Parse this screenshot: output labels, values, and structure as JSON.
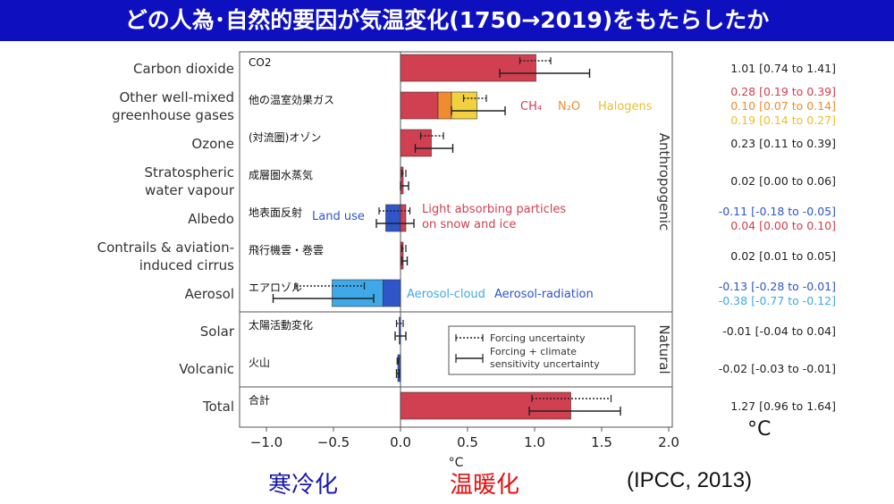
{
  "title": "どの人為･自然的要因が気温変化(1750→2019)をもたらしたか",
  "captions": {
    "cooling": "寒冷化",
    "warming": "温暖化",
    "source": "(IPCC, 2013)"
  },
  "colors": {
    "warming": "#d04050",
    "n2o": "#f08c30",
    "halogens": "#f2d040",
    "cooling": "#2f55c8",
    "aerosol_cloud": "#3fa8e8",
    "title_bg": "#0e0fbf"
  },
  "chart_data": {
    "type": "bar",
    "orientation": "horizontal",
    "xlabel": "°C",
    "xlim": [
      -1.2,
      2.0
    ],
    "xticks": [
      -1.0,
      -0.5,
      0.0,
      0.5,
      1.0,
      1.5,
      2.0
    ],
    "xtick_labels": [
      "−1.0",
      "−0.5",
      "0.0",
      "0.5",
      "1.0",
      "1.5",
      "2.0"
    ],
    "value_unit": "°C",
    "group_labels": {
      "anthropogenic": "Anthropogenic",
      "natural": "Natural"
    },
    "categories": [
      {
        "label": [
          "Carbon dioxide"
        ],
        "jp": "CO2",
        "segments": [
          {
            "from": 0,
            "to": 1.01,
            "color": "#d04050"
          }
        ],
        "forcing": [
          0.89,
          1.12
        ],
        "sensitivity": [
          0.74,
          1.41
        ],
        "values": [
          {
            "text": "1.01 [0.74 to 1.41]",
            "color": "#222222"
          }
        ]
      },
      {
        "label": [
          "Other well-mixed",
          "greenhouse gases"
        ],
        "jp": "他の温室効果ガス",
        "segments": [
          {
            "from": 0,
            "to": 0.28,
            "color": "#d04050"
          },
          {
            "from": 0.28,
            "to": 0.38,
            "color": "#f08c30"
          },
          {
            "from": 0.38,
            "to": 0.57,
            "color": "#f2d040"
          }
        ],
        "forcing": [
          0.47,
          0.64
        ],
        "sensitivity": [
          0.38,
          0.78
        ],
        "annotations": [
          {
            "text": "CH₄",
            "color": "#d04050"
          },
          {
            "text": "N₂O",
            "color": "#f08c30"
          },
          {
            "text": "Halogens",
            "color": "#e8c030"
          }
        ],
        "values": [
          {
            "text": "0.28 [0.19 to 0.39]",
            "color": "#d04050"
          },
          {
            "text": "0.10 [0.07 to 0.14]",
            "color": "#f08c30"
          },
          {
            "text": "0.19 [0.14 to 0.27]",
            "color": "#e8c030"
          }
        ]
      },
      {
        "label": [
          "Ozone"
        ],
        "jp": "(対流圏)オゾン",
        "segments": [
          {
            "from": 0,
            "to": 0.23,
            "color": "#d04050"
          }
        ],
        "forcing": [
          0.15,
          0.32
        ],
        "sensitivity": [
          0.11,
          0.39
        ],
        "values": [
          {
            "text": "0.23 [0.11 to 0.39]",
            "color": "#222222"
          }
        ]
      },
      {
        "label": [
          "Stratospheric",
          "water vapour"
        ],
        "jp": "成層圏水蒸気",
        "segments": [
          {
            "from": 0,
            "to": 0.02,
            "color": "#d04050"
          }
        ],
        "forcing": [
          0.01,
          0.04
        ],
        "sensitivity": [
          0.0,
          0.06
        ],
        "values": [
          {
            "text": "0.02 [0.00 to 0.06]",
            "color": "#222222"
          }
        ]
      },
      {
        "label": [
          "Albedo"
        ],
        "jp": "地表面反射",
        "segments": [
          {
            "from": -0.11,
            "to": 0,
            "color": "#2f55c8"
          },
          {
            "from": 0,
            "to": 0.04,
            "color": "#d04050"
          }
        ],
        "forcing": [
          -0.16,
          0.07
        ],
        "sensitivity": [
          -0.18,
          0.1
        ],
        "annotations": [
          {
            "text": "Land use",
            "color": "#2f55c8"
          },
          {
            "text": "Light absorbing particles",
            "color": "#d04050"
          },
          {
            "text": "on snow and ice",
            "color": "#d04050"
          }
        ],
        "values": [
          {
            "text": "-0.11 [-0.18 to -0.05]",
            "color": "#2f55c8"
          },
          {
            "text": "0.04 [0.00 to 0.10]",
            "color": "#d04050"
          }
        ]
      },
      {
        "label": [
          "Contrails & aviation-",
          "induced cirrus"
        ],
        "jp": "飛行機雲・巻雲",
        "segments": [
          {
            "from": 0,
            "to": 0.02,
            "color": "#d04050"
          }
        ],
        "forcing": [
          0.01,
          0.04
        ],
        "sensitivity": [
          0.01,
          0.05
        ],
        "values": [
          {
            "text": "0.02 [0.01 to 0.05]",
            "color": "#222222"
          }
        ]
      },
      {
        "label": [
          "Aerosol"
        ],
        "jp": "エアロゾル",
        "segments": [
          {
            "from": -0.51,
            "to": -0.13,
            "color": "#3fa8e8"
          },
          {
            "from": -0.13,
            "to": 0,
            "color": "#2f55c8"
          }
        ],
        "forcing": [
          -0.78,
          -0.27
        ],
        "sensitivity": [
          -0.95,
          -0.2
        ],
        "annotations": [
          {
            "text": "Aerosol-cloud",
            "color": "#3fa8e8"
          },
          {
            "text": "Aerosol-radiation",
            "color": "#2f55c8"
          }
        ],
        "values": [
          {
            "text": "-0.13 [-0.28 to -0.01]",
            "color": "#2f55c8"
          },
          {
            "text": "-0.38 [-0.77 to -0.12]",
            "color": "#3fa8e8"
          }
        ]
      },
      {
        "label": [
          "Solar"
        ],
        "jp": "太陽活動変化",
        "segments": [
          {
            "from": -0.01,
            "to": 0,
            "color": "#2f55c8"
          }
        ],
        "forcing": [
          -0.03,
          0.02
        ],
        "sensitivity": [
          -0.04,
          0.04
        ],
        "values": [
          {
            "text": "-0.01 [-0.04 to 0.04]",
            "color": "#222222"
          }
        ]
      },
      {
        "label": [
          "Volcanic"
        ],
        "jp": "火山",
        "segments": [
          {
            "from": -0.02,
            "to": 0,
            "color": "#2f55c8"
          }
        ],
        "forcing": [
          -0.025,
          -0.015
        ],
        "sensitivity": [
          -0.03,
          -0.01
        ],
        "values": [
          {
            "text": "-0.02 [-0.03 to -0.01]",
            "color": "#222222"
          }
        ]
      },
      {
        "label": [
          "Total"
        ],
        "jp": "合計",
        "segments": [
          {
            "from": 0,
            "to": 1.27,
            "color": "#d04050"
          }
        ],
        "forcing": [
          0.98,
          1.57
        ],
        "sensitivity": [
          0.96,
          1.64
        ],
        "values": [
          {
            "text": "1.27 [0.96 to 1.64]",
            "color": "#222222"
          }
        ]
      }
    ],
    "legend": {
      "placement": "inside-bottom-right",
      "items": [
        {
          "kind": "dotted",
          "lines": [
            "Forcing uncertainty"
          ]
        },
        {
          "kind": "solid",
          "lines": [
            "Forcing + climate",
            "sensitivity uncertainty"
          ]
        }
      ]
    },
    "right_unit": "°C"
  }
}
